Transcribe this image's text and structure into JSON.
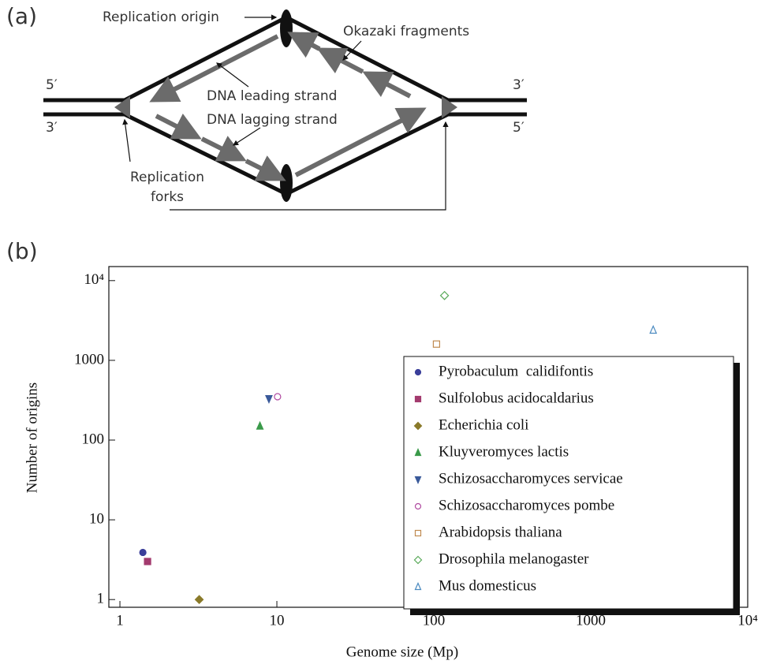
{
  "diagram": {
    "panel_label": "(a)",
    "replication_origin": "Replication origin",
    "okazaki_fragments": "Okazaki fragments",
    "leading_strand": "DNA leading strand",
    "lagging_strand": "DNA lagging strand",
    "replication_forks": [
      "Replication",
      "forks"
    ],
    "left_top_end": "5′",
    "left_bottom_end": "3′",
    "right_top_end": "3′",
    "right_bottom_end": "5′"
  },
  "panel_label_b": "(b)",
  "chart_data": {
    "type": "scatter",
    "x_label": "Genome size (Mp)",
    "y_label": "Number of origins",
    "log_x": true,
    "log_y": true,
    "legend": "lower-right",
    "xlim": [
      0.85,
      10000
    ],
    "ylim": [
      0.8,
      15000
    ],
    "xticks": [
      1,
      10,
      100,
      1000,
      {
        "value": 10000,
        "label": "10⁴"
      }
    ],
    "yticks": [
      1,
      10,
      100,
      1000,
      {
        "value": 10000,
        "label": "10⁴"
      }
    ],
    "series": [
      {
        "name": "Pyrobaculum  calidifontis",
        "color": "#3b3f9a",
        "marker": "circle",
        "filled": true,
        "x": [
          1.4
        ],
        "values": [
          3.9
        ]
      },
      {
        "name": "Sulfolobus acidocaldarius",
        "color": "#a33b6e",
        "marker": "square",
        "filled": true,
        "x": [
          1.5
        ],
        "values": [
          3
        ]
      },
      {
        "name": "Echerichia coli",
        "color": "#8a7a2a",
        "marker": "diamond",
        "filled": true,
        "x": [
          3.2
        ],
        "values": [
          1
        ]
      },
      {
        "name": "Kluyveromyces lactis",
        "color": "#3a9a4a",
        "marker": "triangle-up",
        "filled": true,
        "x": [
          7.8
        ],
        "values": [
          150
        ]
      },
      {
        "name": "Schizosaccharomyces servicae",
        "color": "#3a5a9a",
        "marker": "triangle-down",
        "filled": true,
        "x": [
          8.9
        ],
        "values": [
          330
        ]
      },
      {
        "name": "Schizosaccharomyces pombe",
        "color": "#b04aa0",
        "marker": "circle",
        "filled": false,
        "x": [
          10.1
        ],
        "values": [
          350
        ]
      },
      {
        "name": "Arabidopsis thaliana",
        "color": "#c08a50",
        "marker": "square",
        "filled": false,
        "x": [
          104
        ],
        "values": [
          1600
        ]
      },
      {
        "name": "Drosophila melanogaster",
        "color": "#5aaa5a",
        "marker": "diamond",
        "filled": false,
        "x": [
          117
        ],
        "values": [
          6500
        ]
      },
      {
        "name": "Mus domesticus",
        "color": "#4a8ac0",
        "marker": "triangle-up",
        "filled": false,
        "x": [
          2500
        ],
        "values": [
          2400
        ]
      }
    ]
  }
}
